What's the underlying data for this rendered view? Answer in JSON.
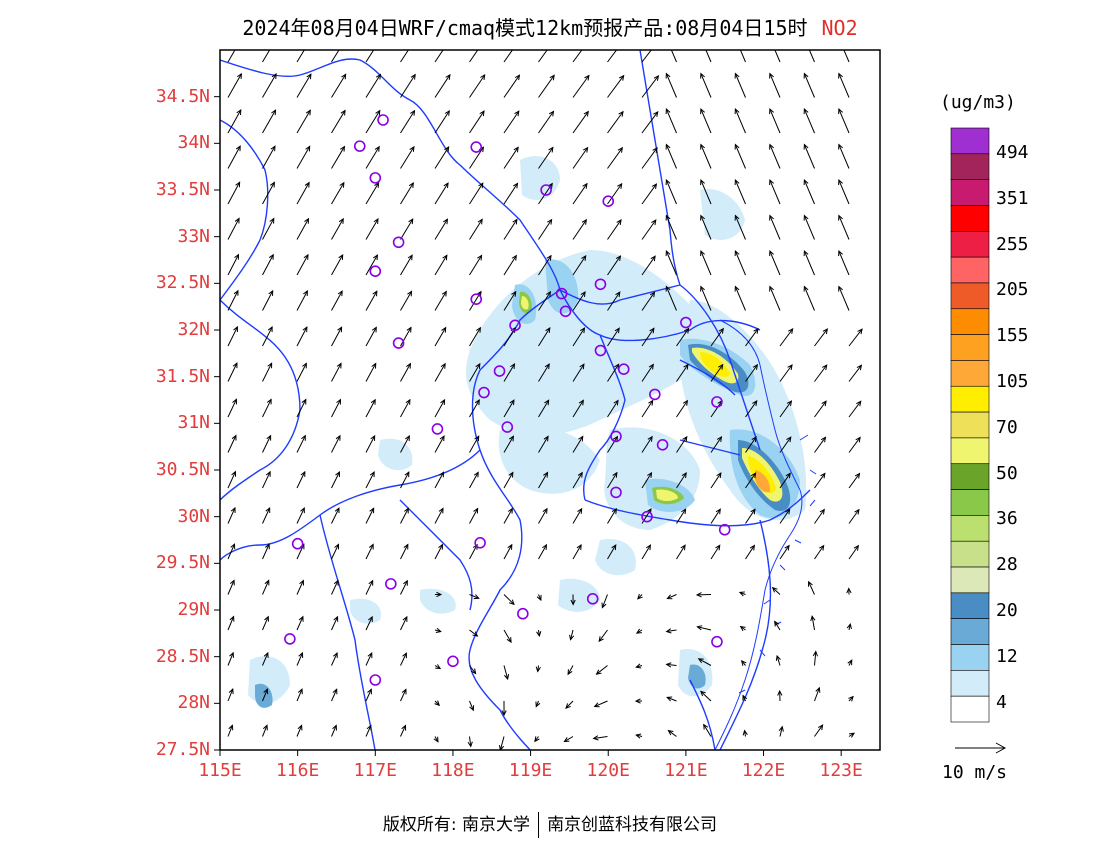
{
  "title": {
    "text": "2024年08月04日WRF/cmaq模式12km预报产品:08月04日15时",
    "species": "NO2"
  },
  "axes": {
    "lat_labels": [
      "34.5N",
      "34N",
      "33.5N",
      "33N",
      "32.5N",
      "32N",
      "31.5N",
      "31N",
      "30.5N",
      "30N",
      "29.5N",
      "29N",
      "28.5N",
      "28N",
      "27.5N"
    ],
    "lat_values": [
      34.5,
      34,
      33.5,
      33,
      32.5,
      32,
      31.5,
      31,
      30.5,
      30,
      29.5,
      29,
      28.5,
      28,
      27.5
    ],
    "lon_labels": [
      "115E",
      "116E",
      "117E",
      "118E",
      "119E",
      "120E",
      "121E",
      "122E",
      "123E"
    ],
    "lon_values": [
      115,
      116,
      117,
      118,
      119,
      120,
      121,
      122,
      123
    ],
    "lon_range": [
      115,
      123.5
    ],
    "lat_range": [
      27.5,
      35.0
    ]
  },
  "legend": {
    "unit": "(ug/m3)",
    "labels": [
      "494",
      "351",
      "255",
      "205",
      "155",
      "105",
      "70",
      "50",
      "36",
      "28",
      "20",
      "12",
      "4"
    ],
    "colors": [
      "#9f2fd0",
      "#a2245a",
      "#c81a6e",
      "#fe0000",
      "#ee1f45",
      "#fe6464",
      "#ee5a28",
      "#fe8c00",
      "#fea020",
      "#fea838",
      "#ffee00",
      "#efe05a",
      "#f0f570",
      "#6aa52a",
      "#8ac84a",
      "#bce070",
      "#c8e08a",
      "#dde8b8",
      "#4a8cc4",
      "#6aaad6",
      "#9ad2f2",
      "#d2ecfa",
      "#ffffff"
    ]
  },
  "wind_reference": {
    "label": "10  m/s"
  },
  "copyright": {
    "owner": "版权所有: 南京大学",
    "partner": "南京创蓝科技有限公司"
  },
  "colors": {
    "axis_labels": "#e23c3c",
    "boundaries": "#1e3cff",
    "stations": "#8a00e6",
    "title_species": "#e0302c"
  },
  "map_data": {
    "stations": [
      [
        117.1,
        34.25
      ],
      [
        116.8,
        33.97
      ],
      [
        118.3,
        33.96
      ],
      [
        117.0,
        33.63
      ],
      [
        119.2,
        33.5
      ],
      [
        120.0,
        33.38
      ],
      [
        117.3,
        32.94
      ],
      [
        117.0,
        32.63
      ],
      [
        119.9,
        32.49
      ],
      [
        119.4,
        32.39
      ],
      [
        118.3,
        32.33
      ],
      [
        119.45,
        32.2
      ],
      [
        118.8,
        32.05
      ],
      [
        121.0,
        32.08
      ],
      [
        117.3,
        31.86
      ],
      [
        119.9,
        31.78
      ],
      [
        120.2,
        31.58
      ],
      [
        118.6,
        31.56
      ],
      [
        120.6,
        31.31
      ],
      [
        118.4,
        31.33
      ],
      [
        121.4,
        31.23
      ],
      [
        117.8,
        30.94
      ],
      [
        118.7,
        30.96
      ],
      [
        120.1,
        30.86
      ],
      [
        120.7,
        30.77
      ],
      [
        120.1,
        30.26
      ],
      [
        120.5,
        30.0
      ],
      [
        121.5,
        29.86
      ],
      [
        116.0,
        29.71
      ],
      [
        118.35,
        29.72
      ],
      [
        117.2,
        29.28
      ],
      [
        119.8,
        29.12
      ],
      [
        118.9,
        28.96
      ],
      [
        115.9,
        28.69
      ],
      [
        121.4,
        28.66
      ],
      [
        118.0,
        28.45
      ],
      [
        117.0,
        28.25
      ]
    ],
    "no2_hotspots": [
      {
        "lon": 121.6,
        "lat": 31.4,
        "level": "50-70"
      },
      {
        "lon": 122.0,
        "lat": 30.3,
        "level": "50-70"
      },
      {
        "lon": 120.7,
        "lat": 30.25,
        "level": "28-36"
      },
      {
        "lon": 118.9,
        "lat": 32.25,
        "level": "28-36"
      },
      {
        "lon": 119.3,
        "lat": 32.4,
        "level": "12-20"
      }
    ],
    "wind_field": "south-westerly to southerly flow over most of the domain, weaker and variable over southern Zhejiang"
  }
}
